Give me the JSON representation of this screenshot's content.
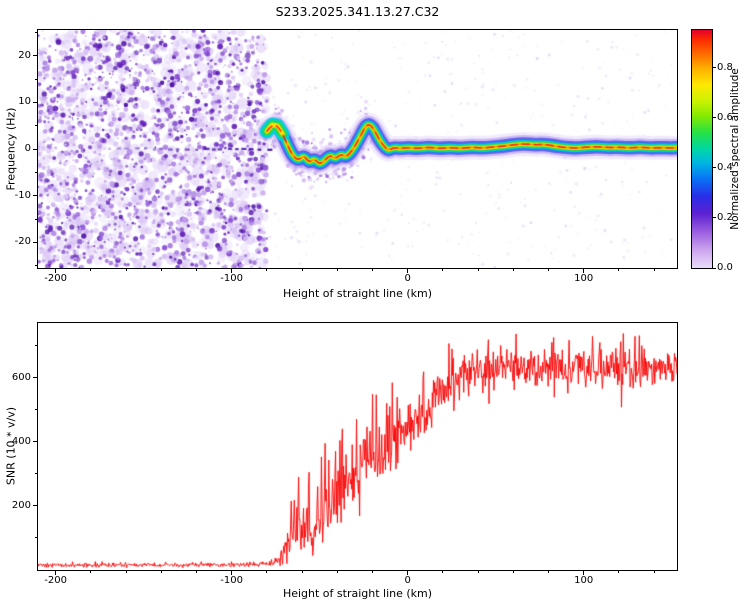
{
  "page_title": "S233.2025.341.13.27.C32",
  "colors": {
    "axis": "#000000",
    "background": "#ffffff",
    "snr_line": "#f80000"
  },
  "chart_data": [
    {
      "id": "spectrogram",
      "type": "heatmap",
      "title": "",
      "xlabel": "Height of straight line (km)",
      "ylabel": "Frequency (Hz)",
      "xlim": [
        -210,
        153
      ],
      "ylim": [
        -25.5,
        25.5
      ],
      "xticks": [
        -200,
        -100,
        0,
        100
      ],
      "yticks": [
        -20,
        -10,
        0,
        10,
        20
      ],
      "x_minor_step": 20,
      "y_minor_step": 5,
      "grid": false,
      "seed": 1337,
      "description": "Dense purple speckle noise fills heights below -80 km with a faint dashed 0 Hz line; a narrow bright signal ridge (blue-green-yellow halo, dashed red core) emerges near -80 km at +5 Hz, wanders between -3.5 and +5.5 Hz, and locks onto 0 Hz from -10 km to the right edge.",
      "noise": {
        "big_blobs": {
          "x_range": [
            -210,
            -80
          ],
          "count": 760,
          "r": [
            2.4,
            6
          ],
          "alpha": 0.5,
          "palette": [
            "#eadffa",
            "#dcc9f6",
            "#cbadf0"
          ]
        },
        "small_blobs": {
          "x_range": [
            -210,
            -80
          ],
          "count": 1850,
          "r": [
            0.7,
            2.9
          ],
          "alpha": 0.95,
          "palette": [
            "#d9c4f4",
            "#bf9dea",
            "#a272e0",
            "#8347d2",
            "#6523bc",
            "#4d0fa6"
          ]
        },
        "sparse_blobs": {
          "x_range": [
            -79,
            153
          ],
          "count": 450,
          "r": [
            0.5,
            1.7
          ],
          "alpha": 0.5,
          "palette": [
            "#efe7fb",
            "#e0cff7",
            "#cdb0f0"
          ]
        },
        "zero_line": {
          "x_range": [
            -170,
            -79
          ],
          "color": "#3a07a6"
        },
        "trace_scatter": {
          "x_range": [
            -77,
            -20
          ],
          "count": 330,
          "r": [
            0.7,
            2.3
          ],
          "palette": [
            "#e4d4f8",
            "#cbadf0",
            "#a878e6",
            "#8144d0"
          ]
        }
      },
      "trace": {
        "points": [
          [
            -80,
            3.8
          ],
          [
            -77,
            5.2
          ],
          [
            -74,
            5.0
          ],
          [
            -71,
            3.2
          ],
          [
            -68,
            0.6
          ],
          [
            -65,
            -1.6
          ],
          [
            -62,
            -2.4
          ],
          [
            -59,
            -1.4
          ],
          [
            -56,
            -2.9
          ],
          [
            -53,
            -2.1
          ],
          [
            -50,
            -3.3
          ],
          [
            -47,
            -2.4
          ],
          [
            -44,
            -1.3
          ],
          [
            -41,
            -2.1
          ],
          [
            -38,
            -1.1
          ],
          [
            -35,
            -1.7
          ],
          [
            -32,
            -0.6
          ],
          [
            -29,
            1.2
          ],
          [
            -26,
            3.4
          ],
          [
            -23,
            5.4
          ],
          [
            -20,
            4.8
          ],
          [
            -17,
            2.6
          ],
          [
            -14,
            0.8
          ],
          [
            -11,
            -0.3
          ],
          [
            -8,
            0.3
          ],
          [
            -4,
            0.1
          ],
          [
            0,
            0.3
          ],
          [
            6,
            0.1
          ],
          [
            12,
            0.4
          ],
          [
            18,
            0.1
          ],
          [
            24,
            0.3
          ],
          [
            30,
            0.1
          ],
          [
            36,
            0.4
          ],
          [
            42,
            0.2
          ],
          [
            48,
            0.4
          ],
          [
            54,
            0.6
          ],
          [
            60,
            0.9
          ],
          [
            66,
            1.1
          ],
          [
            72,
            0.9
          ],
          [
            78,
            1.0
          ],
          [
            84,
            0.6
          ],
          [
            90,
            0.3
          ],
          [
            96,
            0.2
          ],
          [
            102,
            0.4
          ],
          [
            108,
            0.5
          ],
          [
            114,
            0.3
          ],
          [
            120,
            0.4
          ],
          [
            126,
            0.2
          ],
          [
            132,
            0.4
          ],
          [
            138,
            0.2
          ],
          [
            144,
            0.3
          ],
          [
            150,
            0.2
          ],
          [
            153,
            0.3
          ]
        ],
        "layers": [
          {
            "color": "#e6d7f9",
            "width": 24,
            "alpha": 0.5
          },
          {
            "color": "#b49bf0",
            "width": 18,
            "alpha": 0.6
          },
          {
            "color": "#5646e6",
            "width": 13.5,
            "alpha": 0.8
          },
          {
            "color": "#1e7ef5",
            "width": 10.5,
            "alpha": 0.9
          },
          {
            "color": "#00cfe0",
            "width": 8.2,
            "alpha": 1
          },
          {
            "color": "#22db4e",
            "width": 6.0,
            "alpha": 1
          },
          {
            "color": "#b5ef00",
            "width": 4.2,
            "alpha": 1
          },
          {
            "color": "#ffdf00",
            "width": 2.8,
            "alpha": 1
          },
          {
            "color": "#ff9100",
            "width": 1.8,
            "alpha": 1
          }
        ],
        "start_blob": {
          "x_until": -70,
          "layers": [
            {
              "color": "#00cfe0",
              "width": 14
            },
            {
              "color": "#22db4e",
              "width": 9
            },
            {
              "color": "#ffdf00",
              "width": 4.5
            }
          ]
        },
        "core": {
          "color": "#ff2015",
          "width": 1.5,
          "dash": [
            7,
            5
          ]
        }
      },
      "colorbar": {
        "label": "Normalized spectral amplitude",
        "ticks": [
          0,
          0.2,
          0.4,
          0.6,
          0.8
        ],
        "tick_labels": [
          "0.0",
          "0.2",
          "0.4",
          "0.6",
          "0.8"
        ],
        "vmax": 0.95,
        "stops": [
          {
            "v": 0,
            "c": "#e9dcf8"
          },
          {
            "v": 0.07,
            "c": "#cfa9f0"
          },
          {
            "v": 0.15,
            "c": "#9c5fe0"
          },
          {
            "v": 0.23,
            "c": "#5b21d2"
          },
          {
            "v": 0.3,
            "c": "#2b2de8"
          },
          {
            "v": 0.37,
            "c": "#0a6ef5"
          },
          {
            "v": 0.44,
            "c": "#00b4e4"
          },
          {
            "v": 0.5,
            "c": "#00d7a4"
          },
          {
            "v": 0.57,
            "c": "#27e144"
          },
          {
            "v": 0.64,
            "c": "#86ea00"
          },
          {
            "v": 0.7,
            "c": "#c9f200"
          },
          {
            "v": 0.77,
            "c": "#ffe800"
          },
          {
            "v": 0.84,
            "c": "#ffae00"
          },
          {
            "v": 0.9,
            "c": "#ff6a00"
          },
          {
            "v": 0.96,
            "c": "#fb2a00"
          },
          {
            "v": 1,
            "c": "#e4002b"
          }
        ]
      }
    },
    {
      "id": "snr",
      "type": "line",
      "title": "",
      "xlabel": "Height of straight line (km)",
      "ylabel": "SNR (10 * v/v)",
      "xlim": [
        -210,
        153
      ],
      "ylim": [
        0,
        770
      ],
      "xticks": [
        -200,
        -100,
        0,
        100
      ],
      "yticks": [
        200,
        400,
        600
      ],
      "x_minor_step": 20,
      "y_minor_step": 100,
      "grid": false,
      "seed": 907,
      "sample_step_km": 0.35,
      "series": [
        {
          "name": "SNR",
          "color": "#f80000",
          "envelope_x_mean_amp": [
            [
              -210,
              15,
              9
            ],
            [
              -180,
              15,
              9
            ],
            [
              -150,
              16,
              9
            ],
            [
              -120,
              16,
              9
            ],
            [
              -100,
              16,
              10
            ],
            [
              -88,
              17,
              10
            ],
            [
              -80,
              19,
              12
            ],
            [
              -75,
              24,
              16
            ],
            [
              -71,
              40,
              38
            ],
            [
              -67,
              95,
              95
            ],
            [
              -63,
              150,
              135
            ],
            [
              -60,
              110,
              100
            ],
            [
              -57,
              150,
              130
            ],
            [
              -54,
              105,
              95
            ],
            [
              -51,
              135,
              115
            ],
            [
              -48,
              195,
              150
            ],
            [
              -45,
              170,
              135
            ],
            [
              -42,
              215,
              155
            ],
            [
              -39,
              235,
              165
            ],
            [
              -36,
              255,
              170
            ],
            [
              -33,
              275,
              175
            ],
            [
              -30,
              295,
              175
            ],
            [
              -27,
              315,
              170
            ],
            [
              -24,
              330,
              165
            ],
            [
              -21,
              350,
              160
            ],
            [
              -18,
              365,
              155
            ],
            [
              -15,
              380,
              150
            ],
            [
              -12,
              390,
              145
            ],
            [
              -9,
              400,
              140
            ],
            [
              -6,
              410,
              135
            ],
            [
              -3,
              420,
              130
            ],
            [
              0,
              432,
              128
            ],
            [
              5,
              458,
              120
            ],
            [
              10,
              488,
              115
            ],
            [
              15,
              520,
              108
            ],
            [
              20,
              552,
              100
            ],
            [
              25,
              582,
              95
            ],
            [
              30,
              603,
              90
            ],
            [
              35,
              617,
              85
            ],
            [
              40,
              626,
              82
            ],
            [
              50,
              632,
              80
            ],
            [
              60,
              626,
              80
            ],
            [
              70,
              632,
              80
            ],
            [
              80,
              636,
              80
            ],
            [
              90,
              626,
              80
            ],
            [
              100,
              631,
              80
            ],
            [
              110,
              629,
              80
            ],
            [
              120,
              633,
              80
            ],
            [
              130,
              626,
              80
            ],
            [
              140,
              631,
              80
            ],
            [
              153,
              629,
              80
            ]
          ],
          "spikes": [
            [
              -66,
              215
            ],
            [
              -62,
              290
            ],
            [
              -56,
              305
            ],
            [
              -51,
              260
            ],
            [
              -47,
              395
            ],
            [
              -41,
              370
            ],
            [
              -37,
              440
            ],
            [
              -29,
              470
            ],
            [
              -20,
              548
            ],
            [
              -12,
              520
            ],
            [
              9,
              618
            ],
            [
              26,
              660
            ],
            [
              46,
              718
            ],
            [
              83,
              725
            ],
            [
              121,
              712
            ]
          ]
        }
      ]
    }
  ]
}
